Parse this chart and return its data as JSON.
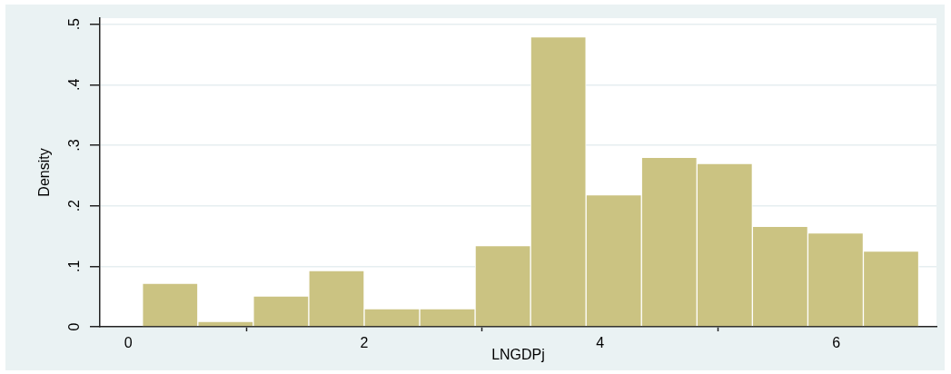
{
  "chart_data": {
    "type": "histogram",
    "xlabel": "LNGDPj",
    "ylabel": "Density",
    "bins": [
      0.12,
      0.59,
      1.06,
      1.53,
      2.0,
      2.47,
      2.94,
      3.41,
      3.88,
      4.35,
      4.82,
      5.29,
      5.76,
      6.23,
      6.7
    ],
    "values": [
      0.072,
      0.009,
      0.051,
      0.093,
      0.03,
      0.03,
      0.134,
      0.479,
      0.218,
      0.28,
      0.27,
      0.166,
      0.155,
      0.125
    ],
    "color": "#cbc382",
    "xlim": [
      -0.24,
      6.85
    ],
    "ylim": [
      0,
      0.51
    ],
    "xticks": [
      0,
      2,
      4,
      6
    ],
    "yticks": [
      0,
      {
        "value": 0.1,
        "label": ".1"
      },
      {
        "value": 0.2,
        "label": ".2"
      },
      {
        "value": 0.3,
        "label": ".3"
      },
      {
        "value": 0.4,
        "label": ".4"
      },
      {
        "value": 0.5,
        "label": ".5"
      }
    ],
    "grid": "y"
  }
}
